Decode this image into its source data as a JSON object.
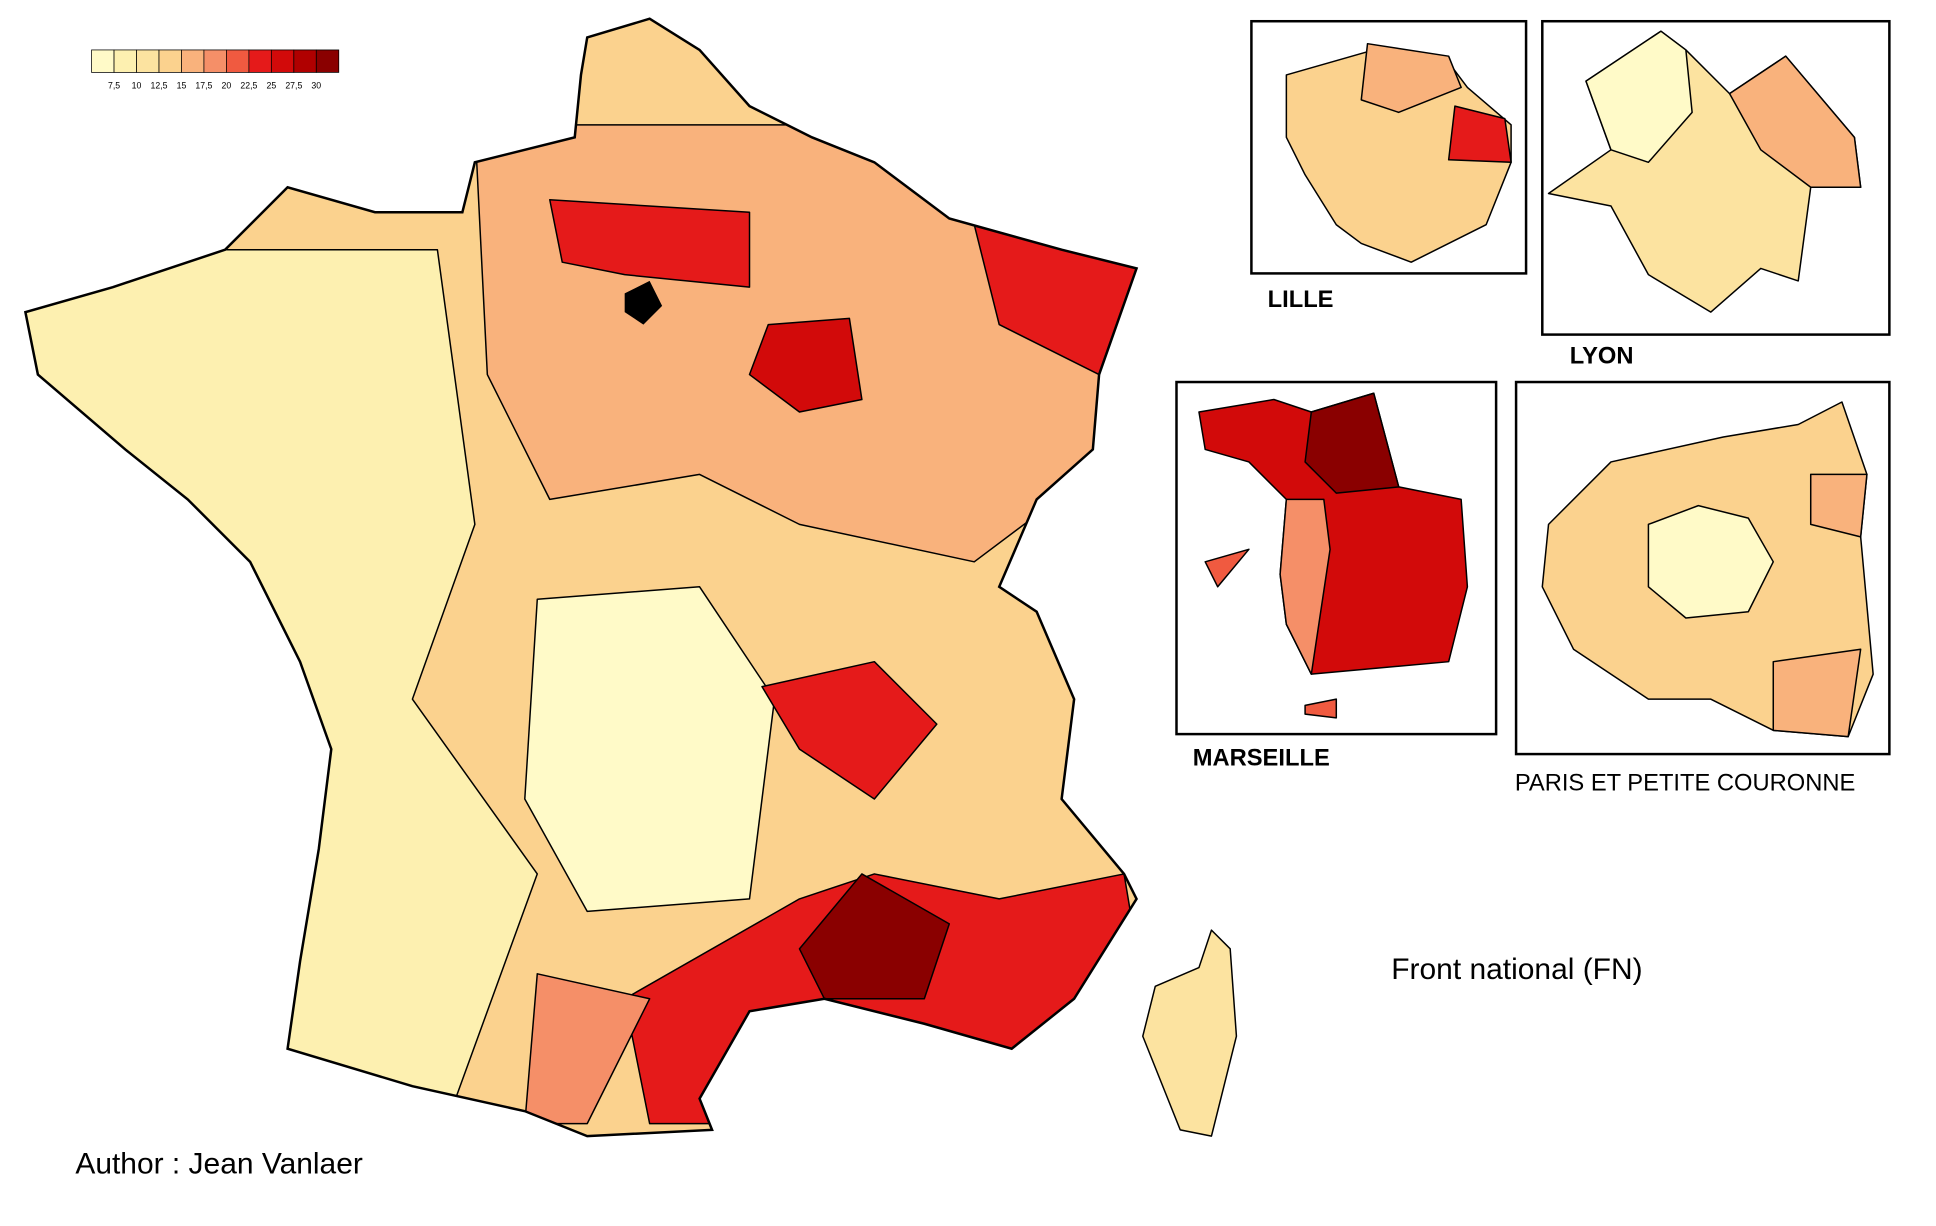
{
  "legend": {
    "colors": [
      "#fffac8",
      "#fdf0b0",
      "#fce3a0",
      "#fbd28e",
      "#f9b27c",
      "#f58f68",
      "#f05a40",
      "#e51a1a",
      "#d20a0a",
      "#b00000",
      "#8a0000"
    ],
    "labels": [
      "7,5",
      "10",
      "12,5",
      "15",
      "17,5",
      "20",
      "22,5",
      "25",
      "27,5",
      "30"
    ]
  },
  "insets": [
    {
      "label": "LILLE"
    },
    {
      "label": "LYON"
    },
    {
      "label": "MARSEILLE"
    },
    {
      "label": "PARIS ET PETITE COURONNE"
    }
  ],
  "title": "Front national (FN)",
  "author": "Author : Jean Vanlaer"
}
